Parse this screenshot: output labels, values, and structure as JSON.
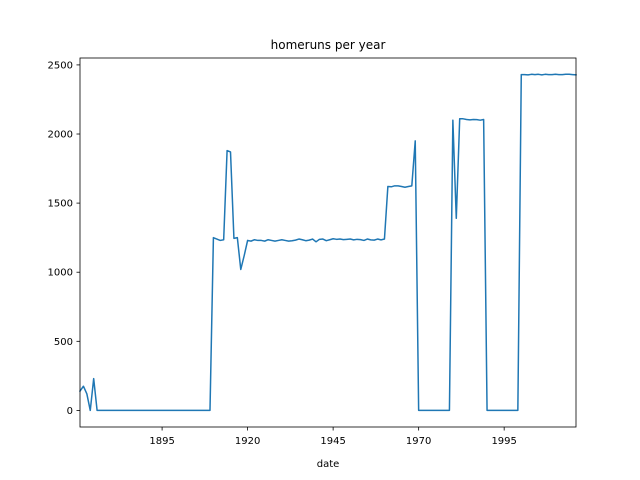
{
  "chart_data": {
    "type": "line",
    "title": "homeruns per year",
    "xlabel": "date",
    "ylabel": "",
    "xlim": [
      1871,
      2016
    ],
    "ylim": [
      -120,
      2550
    ],
    "xticks": [
      1895,
      1920,
      1945,
      1970,
      1995
    ],
    "xtick_labels": [
      "1895",
      "1920",
      "1945",
      "1970",
      "1995"
    ],
    "yticks": [
      0,
      500,
      1000,
      1500,
      2000,
      2500
    ],
    "ytick_labels": [
      "0",
      "500",
      "1000",
      "1500",
      "2000",
      "2500"
    ],
    "grid": false,
    "series": [
      {
        "color": "#1f77b4",
        "x": [
          1871,
          1872,
          1873,
          1874,
          1875,
          1876,
          1877,
          1878,
          1880,
          1885,
          1890,
          1895,
          1900,
          1905,
          1908,
          1909,
          1910,
          1911,
          1912,
          1913,
          1914,
          1915,
          1916,
          1917,
          1918,
          1919,
          1920,
          1921,
          1922,
          1923,
          1924,
          1925,
          1926,
          1927,
          1928,
          1929,
          1930,
          1931,
          1932,
          1933,
          1934,
          1935,
          1936,
          1937,
          1938,
          1939,
          1940,
          1941,
          1942,
          1943,
          1944,
          1945,
          1946,
          1947,
          1948,
          1949,
          1950,
          1951,
          1952,
          1953,
          1954,
          1955,
          1956,
          1957,
          1958,
          1959,
          1960,
          1961,
          1962,
          1963,
          1964,
          1965,
          1966,
          1967,
          1968,
          1969,
          1970,
          1975,
          1978,
          1979,
          1980,
          1981,
          1982,
          1983,
          1984,
          1985,
          1986,
          1987,
          1988,
          1989,
          1990,
          1991,
          1995,
          1999,
          2000,
          2001,
          2002,
          2003,
          2004,
          2005,
          2006,
          2007,
          2008,
          2009,
          2010,
          2011,
          2012,
          2013,
          2014,
          2015,
          2016
        ],
        "y": [
          140,
          175,
          120,
          0,
          230,
          0,
          0,
          0,
          0,
          0,
          0,
          0,
          0,
          0,
          0,
          0,
          1250,
          1240,
          1230,
          1235,
          1880,
          1870,
          1245,
          1250,
          1020,
          1120,
          1230,
          1225,
          1235,
          1230,
          1230,
          1225,
          1235,
          1230,
          1225,
          1230,
          1235,
          1230,
          1225,
          1228,
          1232,
          1240,
          1235,
          1228,
          1232,
          1240,
          1220,
          1238,
          1240,
          1228,
          1235,
          1242,
          1238,
          1240,
          1236,
          1238,
          1240,
          1234,
          1238,
          1236,
          1230,
          1240,
          1234,
          1232,
          1240,
          1234,
          1240,
          1620,
          1618,
          1625,
          1625,
          1620,
          1615,
          1620,
          1625,
          1950,
          0,
          0,
          0,
          0,
          2100,
          1390,
          2110,
          2110,
          2105,
          2102,
          2105,
          2104,
          2100,
          2105,
          0,
          0,
          0,
          0,
          2430,
          2430,
          2428,
          2432,
          2430,
          2432,
          2428,
          2432,
          2430,
          2430,
          2432,
          2430,
          2430,
          2432,
          2432,
          2430,
          2428
        ]
      }
    ]
  }
}
